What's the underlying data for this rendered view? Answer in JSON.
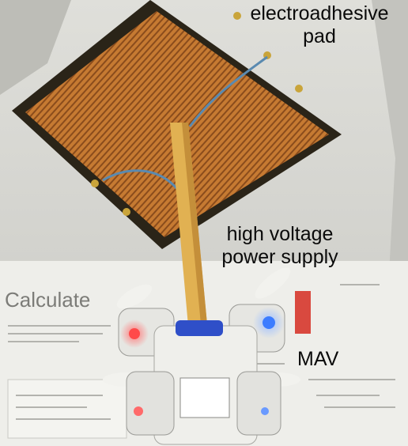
{
  "annotations": {
    "pad_line1": "electroadhesive",
    "pad_line2": "pad",
    "supply_line1": "high voltage",
    "supply_line2": "power supply",
    "mav": "MAV"
  },
  "background_text": {
    "heading": "Calculate"
  },
  "colors": {
    "pad": "#c67a32",
    "pad_border": "#2a2418",
    "ceiling": "#d8d8d3",
    "led_red": "#ff4a4a",
    "led_blue": "#3c7cff",
    "tape_blue": "#2f4fc8"
  }
}
